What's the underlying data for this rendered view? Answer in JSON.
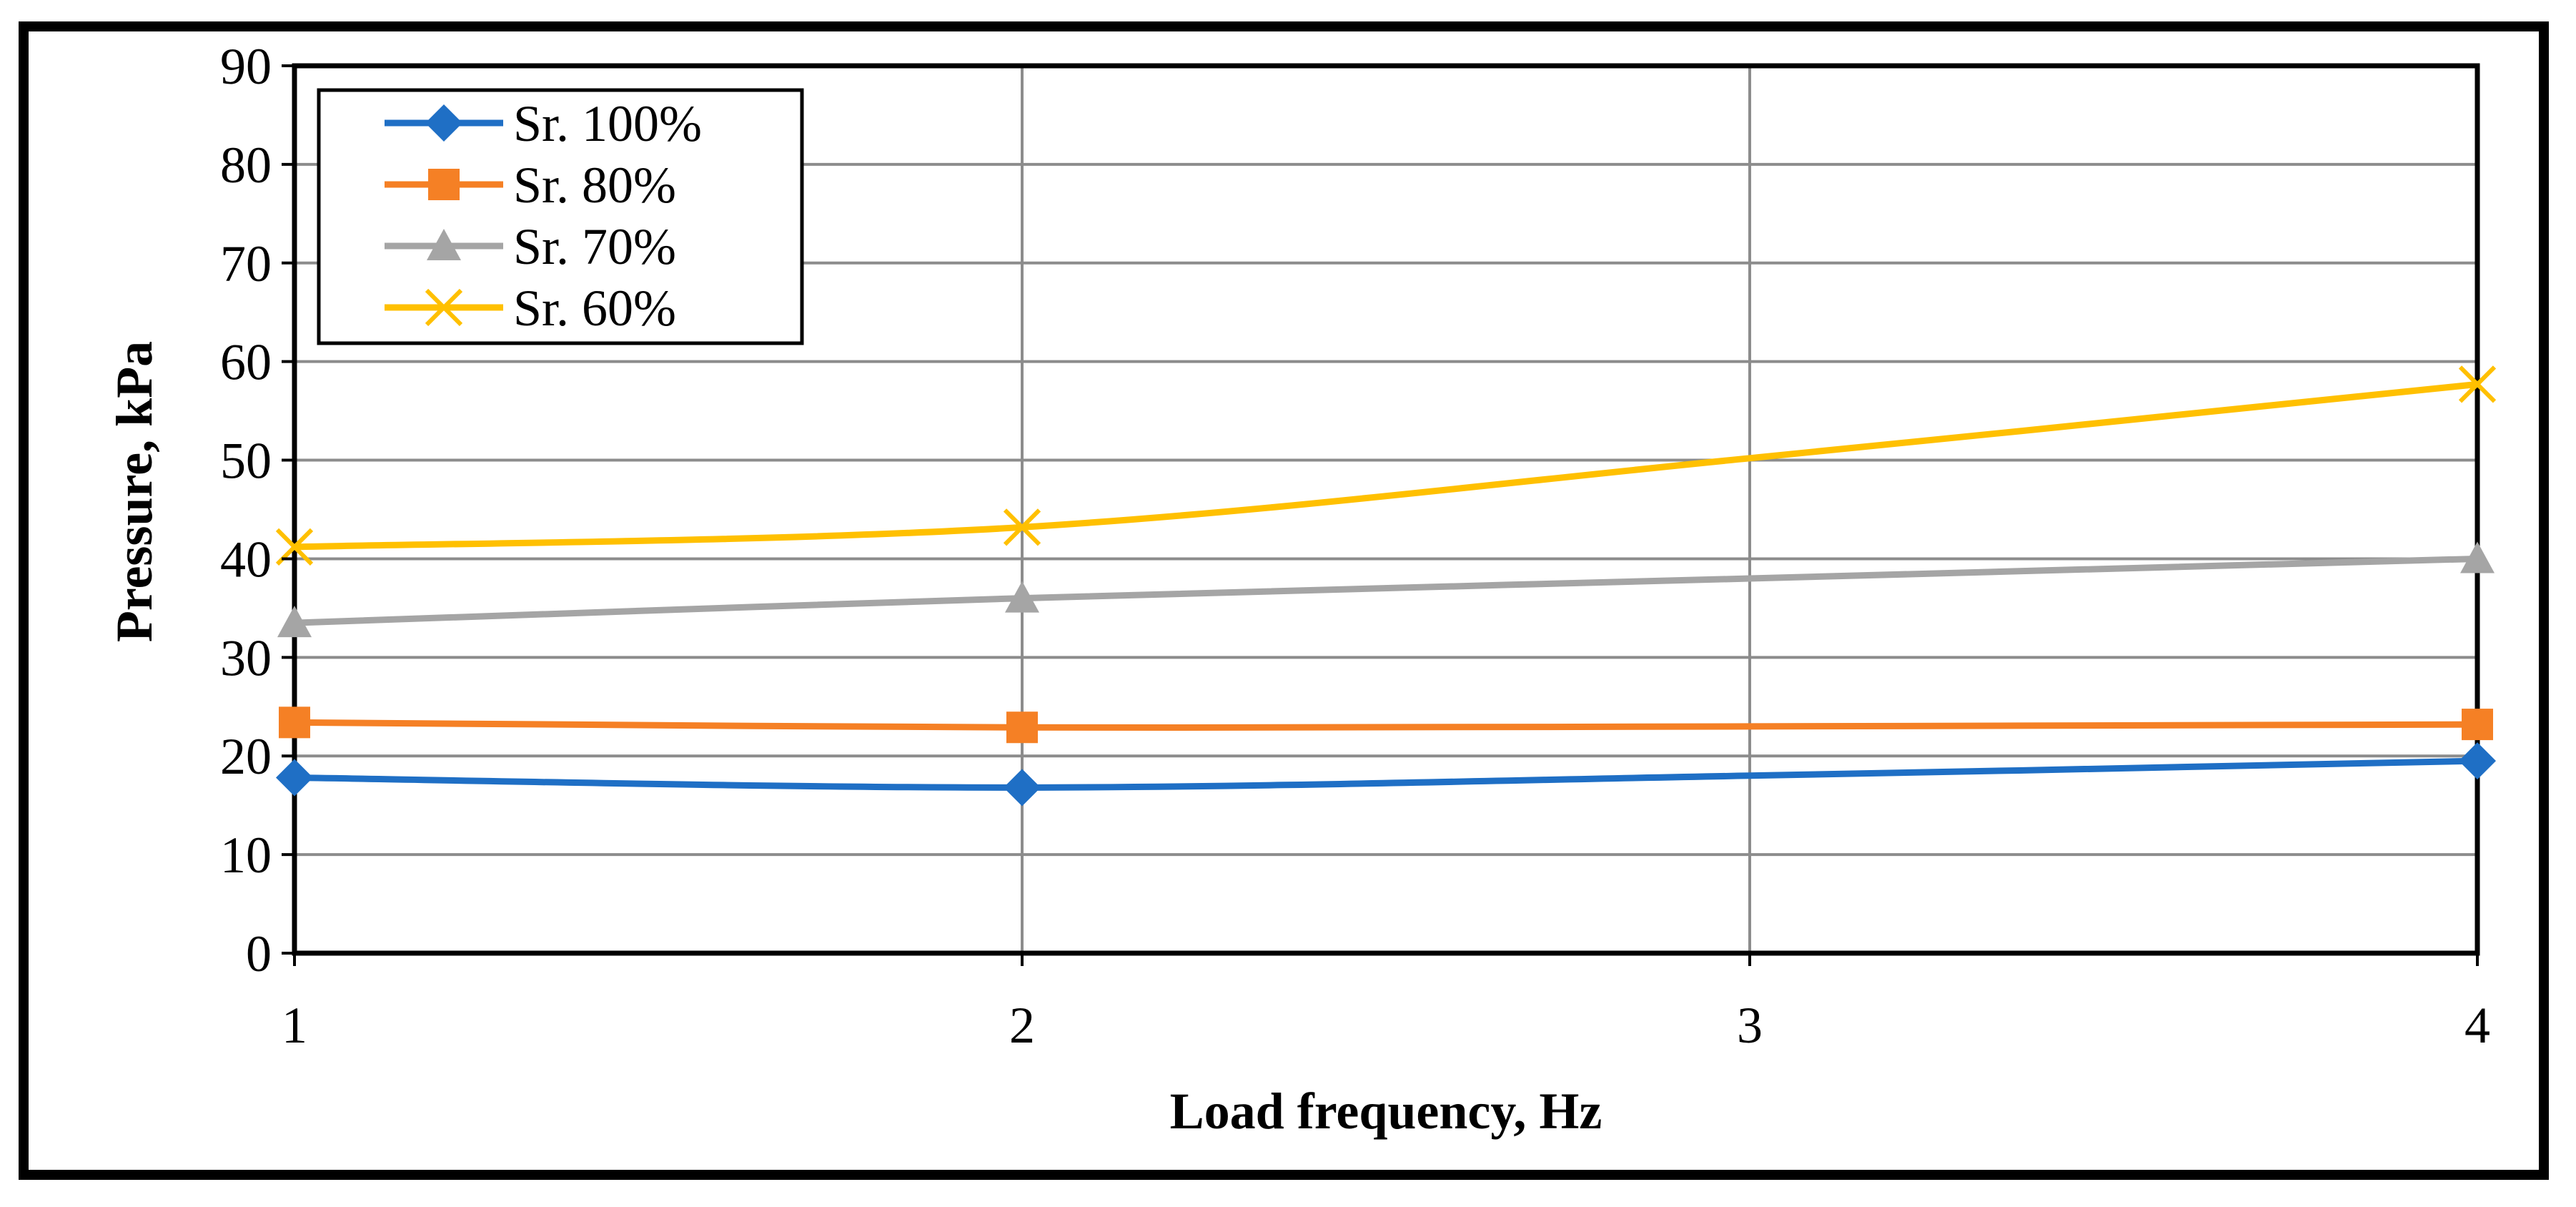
{
  "chart_data": {
    "type": "line",
    "title": "",
    "xlabel": "Load frequency, Hz",
    "ylabel": "Pressure, kPa",
    "x": [
      1,
      2,
      3,
      4
    ],
    "x_tick_labels": [
      "1",
      "2",
      "3",
      "4"
    ],
    "xlim": [
      1,
      4
    ],
    "ylim": [
      0,
      90
    ],
    "y_ticks": [
      0,
      10,
      20,
      30,
      40,
      50,
      60,
      70,
      80,
      90
    ],
    "y_tick_labels": [
      "0",
      "10",
      "20",
      "30",
      "40",
      "50",
      "60",
      "70",
      "80",
      "90"
    ],
    "grid": true,
    "legend_position": "top-left",
    "series": [
      {
        "name": "Sr. 100%",
        "values": [
          17.8,
          16.8,
          18.0,
          19.5
        ],
        "color": "#1F6FC5",
        "marker": "diamond",
        "marker_x": [
          1,
          2,
          4
        ]
      },
      {
        "name": "Sr. 80%",
        "values": [
          23.4,
          22.9,
          23.0,
          23.2
        ],
        "color": "#F58025",
        "marker": "square",
        "marker_x": [
          1,
          2,
          4
        ]
      },
      {
        "name": "Sr. 70%",
        "values": [
          33.5,
          36.0,
          38.0,
          40.0
        ],
        "color": "#A5A5A5",
        "marker": "triangle",
        "marker_x": [
          1,
          2,
          4
        ]
      },
      {
        "name": "Sr. 60%",
        "values": [
          41.2,
          43.2,
          50.2,
          57.7
        ],
        "color": "#FFC000",
        "marker": "x",
        "marker_x": [
          1,
          2,
          4
        ]
      }
    ]
  }
}
